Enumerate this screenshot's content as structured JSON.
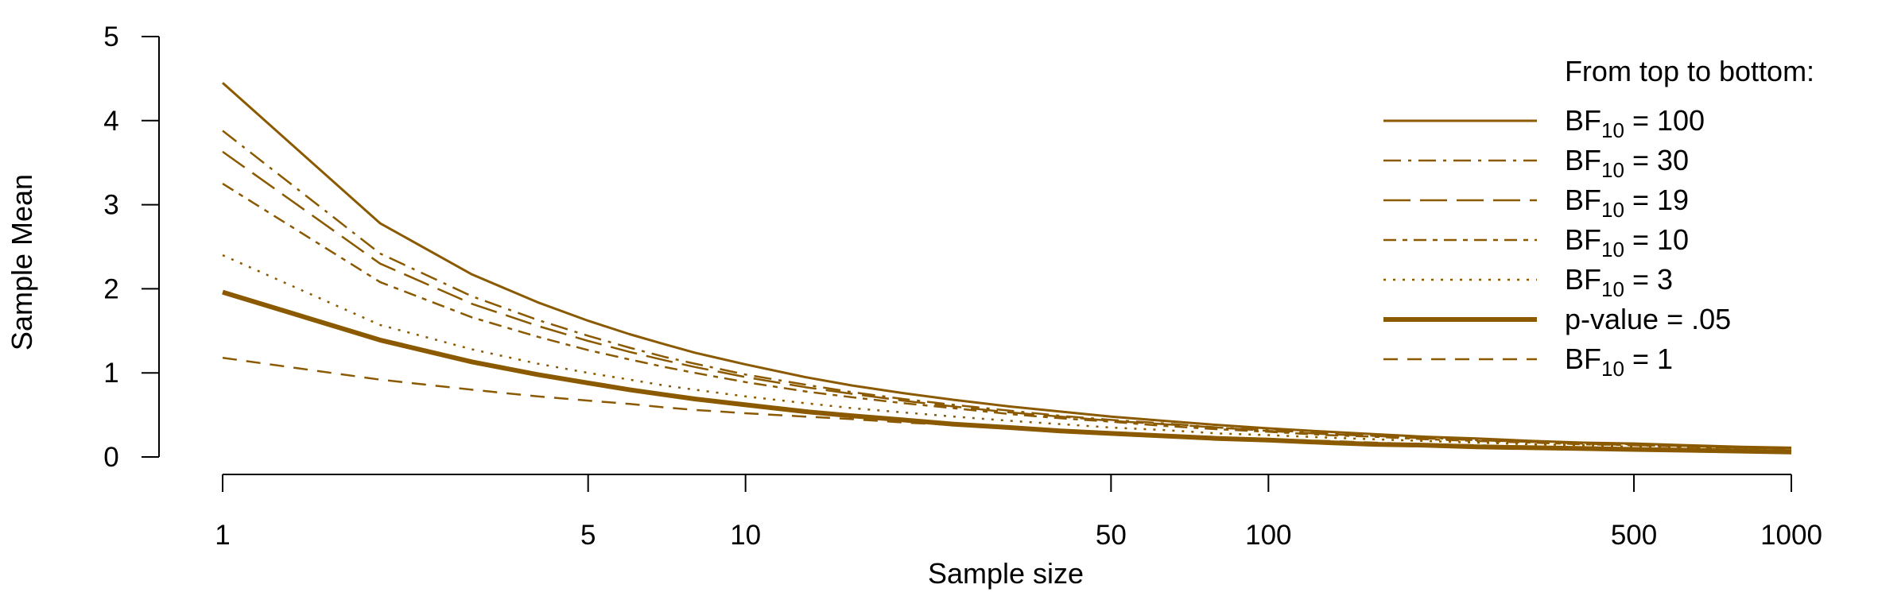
{
  "chart_data": {
    "type": "line",
    "xlabel": "Sample size",
    "ylabel": "Sample Mean",
    "x_scale": "log",
    "xlim": [
      1,
      1000
    ],
    "ylim": [
      0,
      5
    ],
    "x_ticks": [
      1,
      5,
      10,
      50,
      100,
      500,
      1000
    ],
    "x_tick_labels": [
      "1",
      "5",
      "10",
      "50",
      "100",
      "500",
      "1000"
    ],
    "y_ticks": [
      0,
      1,
      2,
      3,
      4,
      5
    ],
    "y_tick_labels": [
      "0",
      "1",
      "2",
      "3",
      "4",
      "5"
    ],
    "grid": false,
    "legend_placement": "top-right",
    "legend_title": "From top to bottom:",
    "color": "#8B5A00",
    "x": [
      1,
      2,
      3,
      4,
      5,
      6,
      7,
      8,
      10,
      13,
      16,
      20,
      25,
      32,
      40,
      50,
      63,
      80,
      100,
      130,
      160,
      200,
      250,
      320,
      400,
      500,
      630,
      800,
      1000
    ],
    "series": [
      {
        "name": "100",
        "style": "solid",
        "width": 3,
        "values": [
          4.45,
          2.78,
          2.17,
          1.84,
          1.62,
          1.46,
          1.34,
          1.24,
          1.1,
          0.95,
          0.85,
          0.76,
          0.68,
          0.6,
          0.54,
          0.48,
          0.43,
          0.38,
          0.34,
          0.3,
          0.27,
          0.24,
          0.22,
          0.19,
          0.17,
          0.16,
          0.14,
          0.12,
          0.11
        ]
      },
      {
        "name": "30",
        "style": "dashdot",
        "width": 2.5,
        "values": [
          3.88,
          2.42,
          1.91,
          1.63,
          1.44,
          1.3,
          1.19,
          1.11,
          0.98,
          0.86,
          0.77,
          0.69,
          0.62,
          0.55,
          0.49,
          0.44,
          0.4,
          0.35,
          0.32,
          0.28,
          0.25,
          0.23,
          0.2,
          0.18,
          0.16,
          0.15,
          0.13,
          0.11,
          0.1
        ]
      },
      {
        "name": "19",
        "style": "longdash",
        "width": 2.5,
        "values": [
          3.63,
          2.3,
          1.82,
          1.56,
          1.38,
          1.25,
          1.15,
          1.07,
          0.95,
          0.83,
          0.75,
          0.67,
          0.6,
          0.53,
          0.48,
          0.43,
          0.39,
          0.35,
          0.31,
          0.27,
          0.25,
          0.22,
          0.2,
          0.18,
          0.16,
          0.14,
          0.13,
          0.11,
          0.1
        ]
      },
      {
        "name": "10",
        "style": "twodash",
        "width": 2.5,
        "values": [
          3.25,
          2.08,
          1.66,
          1.43,
          1.27,
          1.16,
          1.07,
          1.0,
          0.89,
          0.78,
          0.71,
          0.64,
          0.58,
          0.51,
          0.46,
          0.42,
          0.37,
          0.33,
          0.3,
          0.26,
          0.24,
          0.21,
          0.19,
          0.17,
          0.15,
          0.14,
          0.12,
          0.11,
          0.1
        ]
      },
      {
        "name": "3",
        "style": "dotted",
        "width": 2.5,
        "values": [
          2.4,
          1.57,
          1.28,
          1.11,
          1.0,
          0.92,
          0.85,
          0.8,
          0.72,
          0.64,
          0.58,
          0.53,
          0.48,
          0.43,
          0.39,
          0.35,
          0.32,
          0.28,
          0.26,
          0.23,
          0.21,
          0.19,
          0.17,
          0.15,
          0.14,
          0.12,
          0.11,
          0.1,
          0.09
        ]
      },
      {
        "name": "p-value = .05",
        "style": "solid",
        "width": 6,
        "values": [
          1.96,
          1.39,
          1.13,
          0.98,
          0.88,
          0.8,
          0.74,
          0.69,
          0.62,
          0.54,
          0.49,
          0.44,
          0.39,
          0.35,
          0.31,
          0.28,
          0.25,
          0.22,
          0.2,
          0.17,
          0.15,
          0.14,
          0.12,
          0.11,
          0.1,
          0.09,
          0.08,
          0.07,
          0.06
        ]
      },
      {
        "name": "1",
        "style": "dashed",
        "width": 2.5,
        "values": [
          1.18,
          0.92,
          0.8,
          0.72,
          0.67,
          0.63,
          0.59,
          0.56,
          0.52,
          0.48,
          0.45,
          0.41,
          0.38,
          0.34,
          0.31,
          0.29,
          0.26,
          0.23,
          0.21,
          0.19,
          0.17,
          0.15,
          0.14,
          0.12,
          0.11,
          0.1,
          0.09,
          0.08,
          0.07
        ]
      }
    ]
  }
}
